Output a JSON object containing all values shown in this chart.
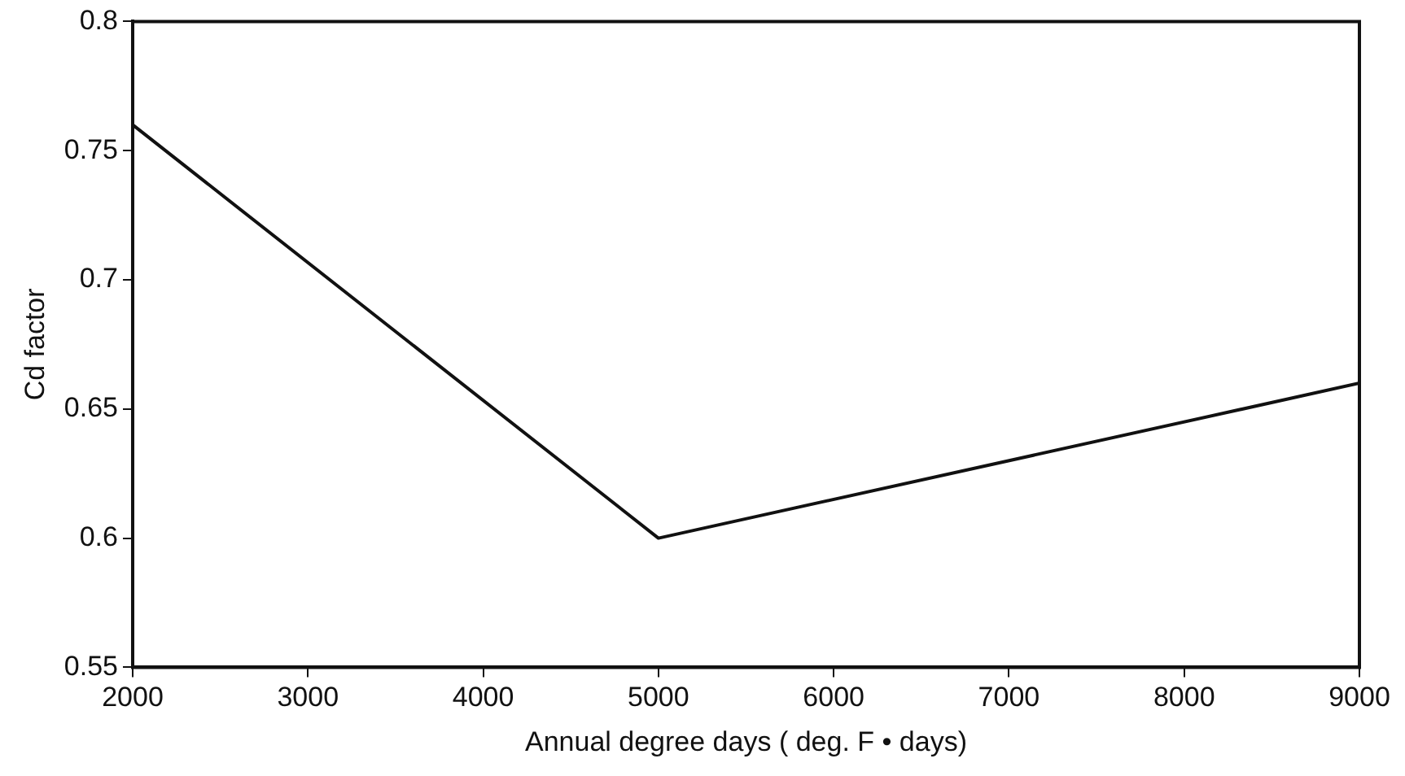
{
  "chart_data": {
    "type": "line",
    "xlabel": "Annual degree days ( deg. F • days)",
    "ylabel": "Cd factor",
    "x": [
      2000,
      5000,
      9000
    ],
    "series": [
      {
        "color": "#111111",
        "values": [
          0.76,
          0.6,
          0.66
        ]
      }
    ],
    "xlim": [
      2000,
      9000
    ],
    "xticks": [
      2000,
      3000,
      4000,
      5000,
      6000,
      7000,
      8000,
      9000
    ],
    "ylim": [
      0.55,
      0.8
    ],
    "yticks": [
      0.55,
      0.6,
      0.65,
      0.7,
      0.75,
      0.8
    ],
    "grid": false,
    "legend": false,
    "marker": "none",
    "line_style": "solid"
  }
}
